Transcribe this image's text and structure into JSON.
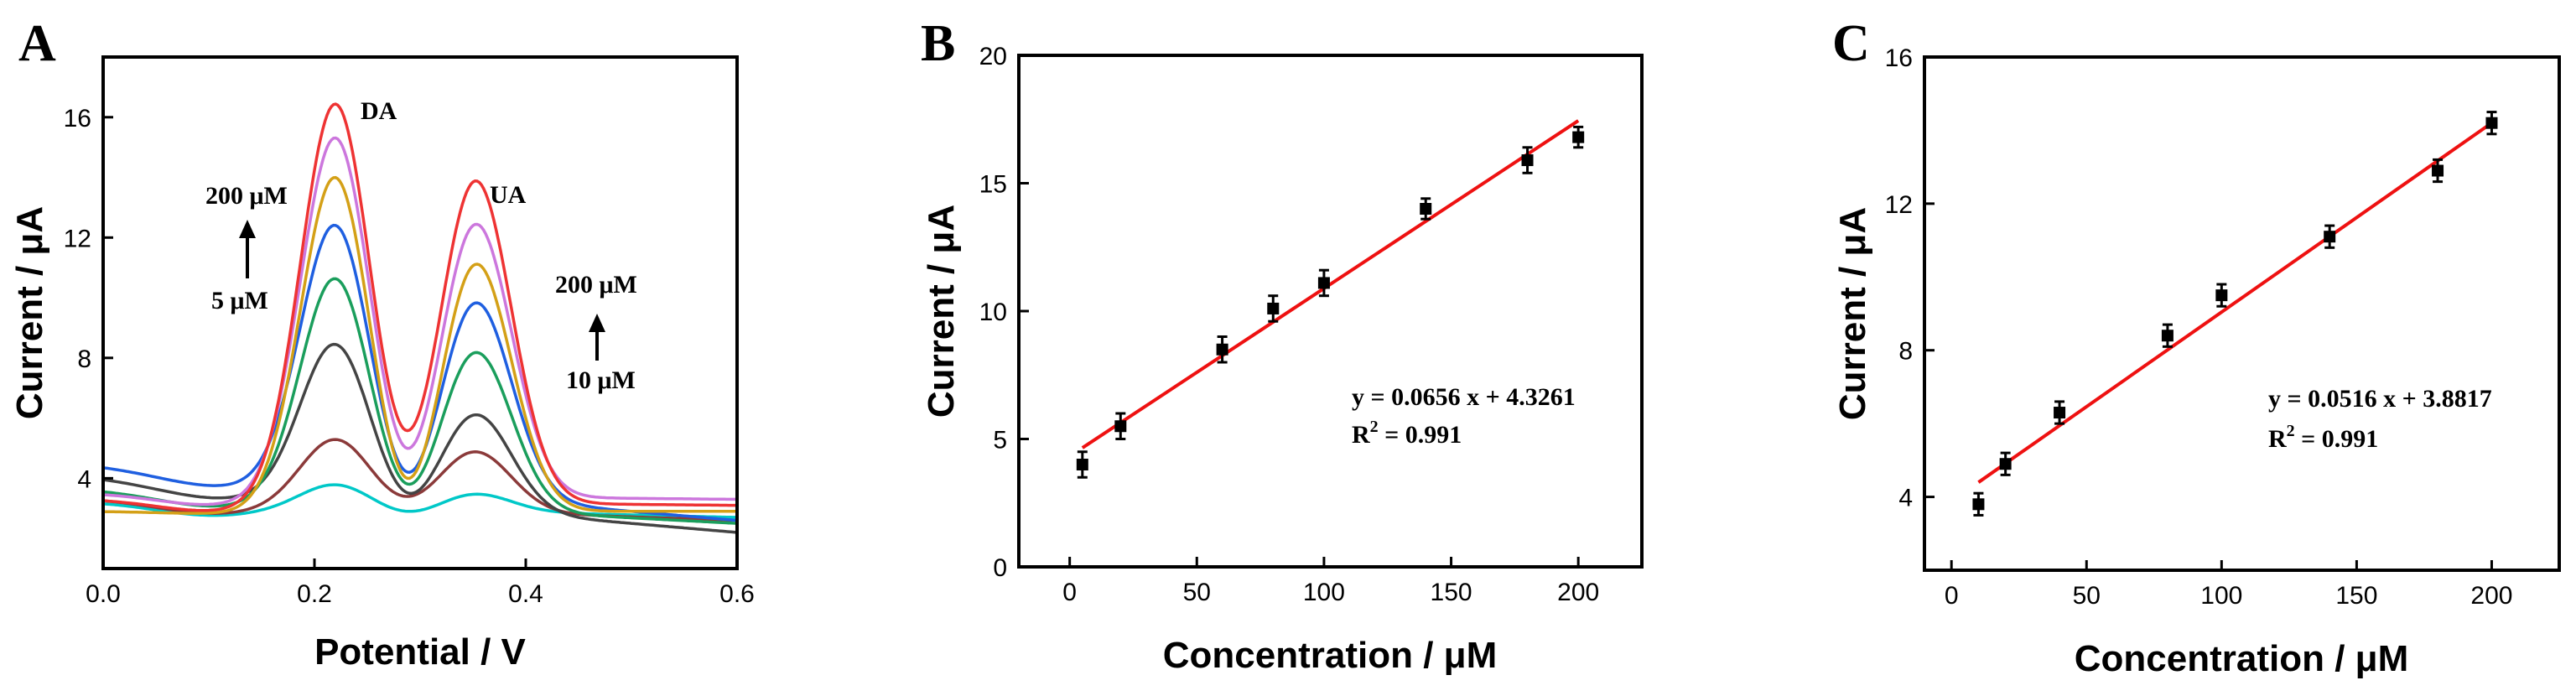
{
  "chart_data": [
    {
      "id": "A",
      "type": "line",
      "panel_label": "A",
      "xlabel": "Potential / V",
      "ylabel": "Current / μA",
      "xlim": [
        0,
        0.6
      ],
      "ylim": [
        1,
        18
      ],
      "xticks": [
        0.0,
        0.2,
        0.4,
        0.6
      ],
      "xtick_labels": [
        "0.0",
        "0.2",
        "0.4",
        "0.6"
      ],
      "yticks": [
        4,
        8,
        12,
        16
      ],
      "ytick_labels": [
        "4",
        "8",
        "12",
        "16"
      ],
      "annotations": {
        "da": "DA",
        "ua": "UA",
        "da_high": "200 μM",
        "da_low": "5 μM",
        "ua_high": "200 μM",
        "ua_low": "10 μM"
      },
      "series": [
        {
          "color": "#00c8c8",
          "start": 3.2,
          "end": 2.7,
          "da_peak": 3.8,
          "ua_peak": 3.5,
          "valley": 2.9
        },
        {
          "color": "#8b3a3a",
          "start": 3.3,
          "end": 2.6,
          "da_peak": 5.3,
          "ua_peak": 4.9,
          "valley": 3.4
        },
        {
          "color": "#444444",
          "start": 4.0,
          "end": 2.2,
          "da_peak": 8.5,
          "ua_peak": 6.2,
          "valley": 3.5
        },
        {
          "color": "#1a9e5c",
          "start": 3.6,
          "end": 2.5,
          "da_peak": 10.7,
          "ua_peak": 8.3,
          "valley": 3.8
        },
        {
          "color": "#1f5fe0",
          "start": 4.4,
          "end": 2.6,
          "da_peak": 12.5,
          "ua_peak": 10.0,
          "valley": 4.2
        },
        {
          "color": "#d4a017",
          "start": 2.9,
          "end": 2.9,
          "da_peak": 14.1,
          "ua_peak": 11.3,
          "valley": 4.0
        },
        {
          "color": "#cc77dd",
          "start": 3.5,
          "end": 3.3,
          "da_peak": 15.4,
          "ua_peak": 12.6,
          "valley": 5.0
        },
        {
          "color": "#ee3333",
          "start": 3.3,
          "end": 3.1,
          "da_peak": 16.5,
          "ua_peak": 14.0,
          "valley": 5.6
        }
      ]
    },
    {
      "id": "B",
      "type": "scatter",
      "panel_label": "B",
      "xlabel": "Concentration / μM",
      "ylabel": "Current / μA",
      "xlim": [
        -20,
        225
      ],
      "ylim": [
        0,
        20
      ],
      "xticks": [
        0,
        50,
        100,
        150,
        200
      ],
      "xtick_labels": [
        "0",
        "50",
        "100",
        "150",
        "200"
      ],
      "yticks": [
        0,
        5,
        10,
        15,
        20
      ],
      "ytick_labels": [
        "0",
        "5",
        "10",
        "15",
        "20"
      ],
      "x": [
        5,
        20,
        60,
        80,
        100,
        140,
        180,
        200
      ],
      "y": [
        4.0,
        5.5,
        8.5,
        10.1,
        11.1,
        14.0,
        15.9,
        16.8
      ],
      "err": [
        0.5,
        0.5,
        0.5,
        0.5,
        0.5,
        0.4,
        0.5,
        0.4
      ],
      "fit": {
        "slope": 0.0656,
        "intercept": 4.3261,
        "x_range": [
          5,
          200
        ],
        "color": "#ee1111"
      },
      "equation": "y = 0.0656 x + 4.3261",
      "r2_prefix": "R",
      "r2_sup": "2",
      "r2_suffix": " = 0.991"
    },
    {
      "id": "C",
      "type": "scatter",
      "panel_label": "C",
      "xlabel": "Concentration / μM",
      "ylabel": "Current / μA",
      "xlim": [
        -10,
        225
      ],
      "ylim": [
        2,
        16
      ],
      "xticks": [
        0,
        50,
        100,
        150,
        200
      ],
      "xtick_labels": [
        "0",
        "50",
        "100",
        "150",
        "200"
      ],
      "yticks": [
        4,
        8,
        12,
        16
      ],
      "ytick_labels": [
        "4",
        "8",
        "12",
        "16"
      ],
      "x": [
        10,
        20,
        40,
        80,
        100,
        140,
        180,
        200
      ],
      "y": [
        3.8,
        4.9,
        6.3,
        8.4,
        9.5,
        11.1,
        12.9,
        14.2
      ],
      "err": [
        0.3,
        0.3,
        0.3,
        0.3,
        0.3,
        0.3,
        0.3,
        0.3
      ],
      "fit": {
        "slope": 0.0516,
        "intercept": 3.8817,
        "x_range": [
          10,
          200
        ],
        "color": "#ee1111"
      },
      "equation": "y = 0.0516 x + 3.8817",
      "r2_prefix": "R",
      "r2_sup": "2",
      "r2_suffix": " = 0.991"
    }
  ]
}
